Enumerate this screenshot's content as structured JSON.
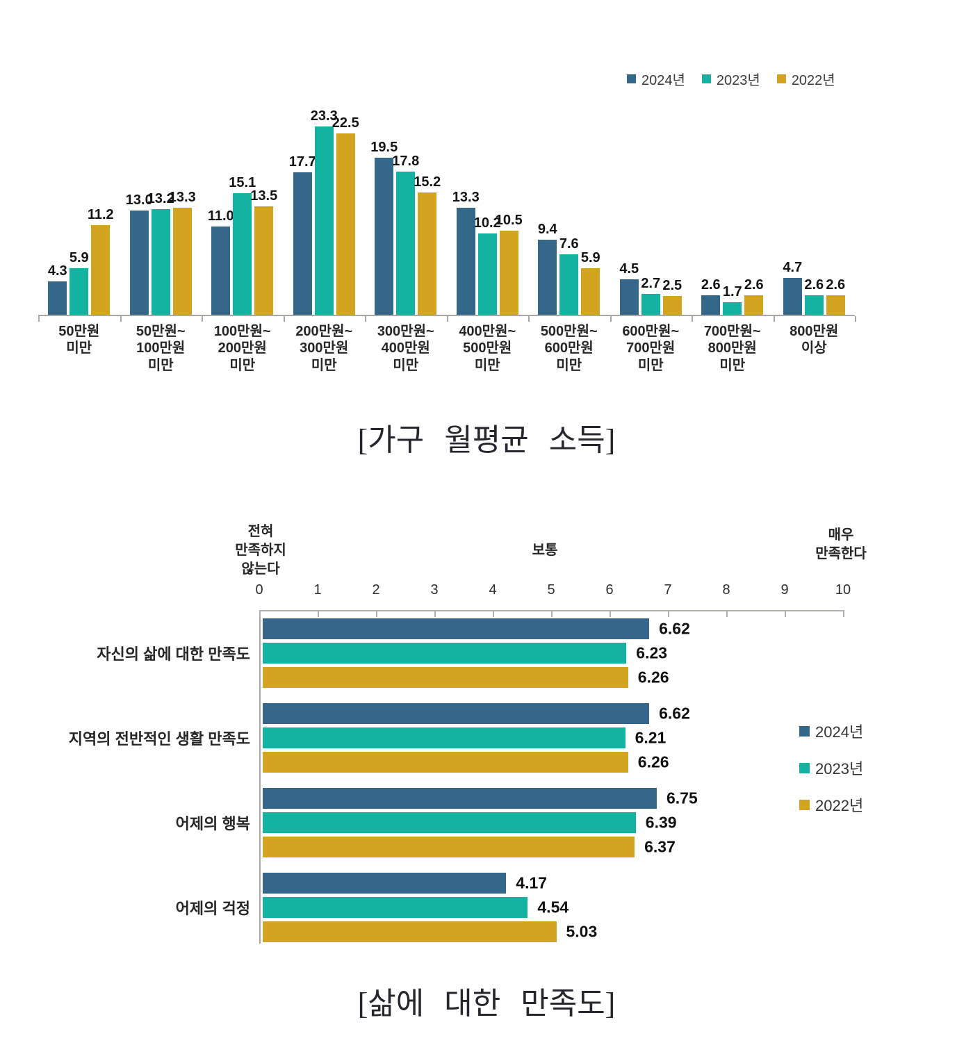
{
  "chart_data": [
    {
      "type": "bar",
      "title": "[가구 월평균 소득]",
      "categories": [
        "50만원\n미만",
        "50만원~\n100만원\n미만",
        "100만원~\n200만원\n미만",
        "200만원~\n300만원\n미만",
        "300만원~\n400만원\n미만",
        "400만원~\n500만원\n미만",
        "500만원~\n600만원\n미만",
        "600만원~\n700만원\n미만",
        "700만원~\n800만원\n미만",
        "800만원\n이상"
      ],
      "series": [
        {
          "name": "2024년",
          "color": "#33688a",
          "values": [
            4.3,
            13.0,
            11.0,
            17.7,
            19.5,
            13.3,
            9.4,
            4.5,
            2.6,
            4.7
          ]
        },
        {
          "name": "2023년",
          "color": "#14b2a0",
          "values": [
            5.9,
            13.2,
            15.1,
            23.3,
            17.8,
            10.2,
            7.6,
            2.7,
            1.7,
            2.6
          ]
        },
        {
          "name": "2022년",
          "color": "#d2a41f",
          "values": [
            11.2,
            13.3,
            13.5,
            22.5,
            15.2,
            10.5,
            5.9,
            2.5,
            2.6,
            2.6
          ]
        }
      ],
      "ylim": [
        0,
        25
      ],
      "grid": false,
      "legend_position": "top-right",
      "value_decimals": 1
    },
    {
      "type": "bar-horizontal",
      "title": "[삶에 대한 만족도]",
      "categories": [
        "자신의 삶에 대한 만족도",
        "지역의 전반적인 생활 만족도",
        "어제의 행복",
        "어제의 걱정"
      ],
      "series": [
        {
          "name": "2024년",
          "color": "#33688a",
          "values": [
            6.62,
            6.62,
            6.75,
            4.17
          ]
        },
        {
          "name": "2023년",
          "color": "#14b2a0",
          "values": [
            6.23,
            6.21,
            6.39,
            4.54
          ]
        },
        {
          "name": "2022년",
          "color": "#d2a41f",
          "values": [
            6.26,
            6.26,
            6.37,
            5.03
          ]
        }
      ],
      "xlim": [
        0,
        10
      ],
      "axis_ticks": [
        "0",
        "1",
        "2",
        "3",
        "4",
        "5",
        "6",
        "7",
        "8",
        "9",
        "10"
      ],
      "scale_labels": {
        "left": "전혀\n만족하지\n않는다",
        "center": "보통",
        "right": "매우\n만족한다"
      },
      "grid": false,
      "legend_position": "right",
      "value_decimals": 2
    }
  ]
}
